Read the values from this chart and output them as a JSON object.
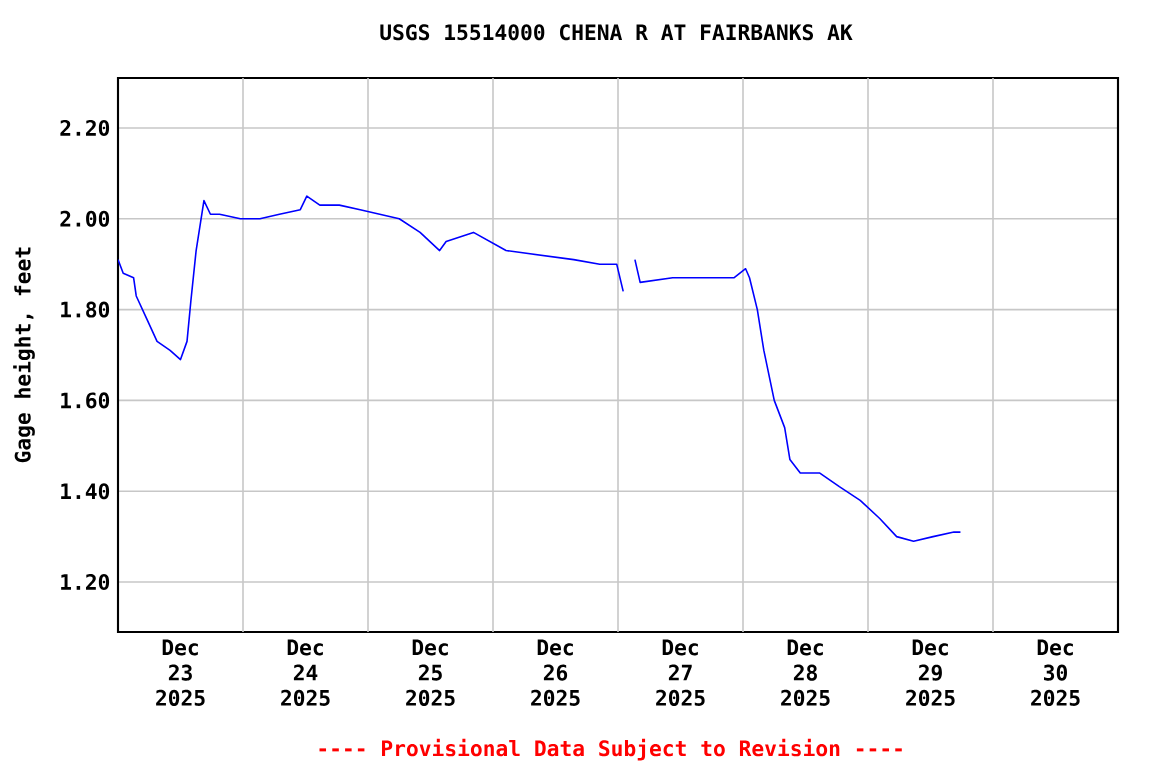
{
  "chart_data": {
    "type": "line",
    "title": "USGS 15514000 CHENA R AT FAIRBANKS AK",
    "ylabel": "Gage height, feet",
    "annotations": [
      "---- Provisional Data Subject to Revision ----"
    ],
    "xlim": [
      "2025-12-23T00:00",
      "2025-12-31T00:00"
    ],
    "xticks": [
      {
        "value": "2025-12-23T12:00",
        "label": "Dec 23 2025"
      },
      {
        "value": "2025-12-24T12:00",
        "label": "Dec 24 2025"
      },
      {
        "value": "2025-12-25T12:00",
        "label": "Dec 25 2025"
      },
      {
        "value": "2025-12-26T12:00",
        "label": "Dec 26 2025"
      },
      {
        "value": "2025-12-27T12:00",
        "label": "Dec 27 2025"
      },
      {
        "value": "2025-12-28T12:00",
        "label": "Dec 28 2025"
      },
      {
        "value": "2025-12-29T12:00",
        "label": "Dec 29 2025"
      },
      {
        "value": "2025-12-30T12:00",
        "label": "Dec 30 2025"
      },
      {
        "value": "2025-12-24T00:00",
        "label": null
      },
      {
        "value": "2025-12-25T00:00",
        "label": null
      },
      {
        "value": "2025-12-26T00:00",
        "label": null
      },
      {
        "value": "2025-12-27T00:00",
        "label": null
      },
      {
        "value": "2025-12-28T00:00",
        "label": null
      },
      {
        "value": "2025-12-29T00:00",
        "label": null
      },
      {
        "value": "2025-12-30T00:00",
        "label": null
      }
    ],
    "ylim": [
      1.09,
      2.31
    ],
    "yticks": [
      {
        "value": 1.2,
        "label": "1.20"
      },
      {
        "value": 1.4,
        "label": "1.40"
      },
      {
        "value": 1.6,
        "label": "1.60"
      },
      {
        "value": 1.8,
        "label": "1.80"
      },
      {
        "value": 2.0,
        "label": "2.00"
      },
      {
        "value": 2.2,
        "label": "2.20"
      }
    ],
    "grid": true,
    "marker": "none",
    "line_style": "solid",
    "series": [
      {
        "color": "#0000ff",
        "x": [
          "2025-12-23T00:00",
          "2025-12-23T01:00",
          "2025-12-23T03:00",
          "2025-12-23T03:30",
          "2025-12-23T05:30",
          "2025-12-23T07:30",
          "2025-12-23T10:00",
          "2025-12-23T12:00",
          "2025-12-23T13:15",
          "2025-12-23T14:00",
          "2025-12-23T15:00",
          "2025-12-23T16:30",
          "2025-12-23T17:45",
          "2025-12-23T19:30",
          "2025-12-23T23:30",
          "2025-12-24T03:15",
          "2025-12-24T07:00",
          "2025-12-24T11:00",
          "2025-12-24T12:15",
          "2025-12-24T14:45",
          "2025-12-24T18:30",
          "2025-12-24T22:30",
          "2025-12-25T02:15",
          "2025-12-25T06:00",
          "2025-12-25T10:00",
          "2025-12-25T13:45",
          "2025-12-25T15:00",
          "2025-12-25T20:15",
          "2025-12-26T02:30",
          "2025-12-26T09:00",
          "2025-12-26T15:30",
          "2025-12-26T20:30",
          "2025-12-26T23:45",
          "2025-12-27T01:00",
          "2025-12-27T02:00",
          "2025-12-27T03:15",
          "2025-12-27T04:15",
          "2025-12-27T10:30",
          "2025-12-27T17:00",
          "2025-12-27T22:15",
          "2025-12-28T00:30",
          "2025-12-28T01:15",
          "2025-12-28T02:45",
          "2025-12-28T04:00",
          "2025-12-28T06:00",
          "2025-12-28T08:00",
          "2025-12-28T09:00",
          "2025-12-28T11:00",
          "2025-12-28T14:45",
          "2025-12-28T18:30",
          "2025-12-28T22:30",
          "2025-12-29T02:15",
          "2025-12-29T05:30",
          "2025-12-29T08:45",
          "2025-12-29T12:30",
          "2025-12-29T16:30",
          "2025-12-29T17:45"
        ],
        "values": [
          1.91,
          1.88,
          1.87,
          1.83,
          1.78,
          1.73,
          1.71,
          1.69,
          1.73,
          1.82,
          1.93,
          2.04,
          2.01,
          2.01,
          2.0,
          2.0,
          2.01,
          2.02,
          2.05,
          2.03,
          2.03,
          2.02,
          2.01,
          2.0,
          1.97,
          1.93,
          1.95,
          1.97,
          1.93,
          1.92,
          1.91,
          1.9,
          1.9,
          1.84,
          null,
          1.91,
          1.86,
          1.87,
          1.87,
          1.87,
          1.89,
          1.87,
          1.8,
          1.71,
          1.6,
          1.54,
          1.47,
          1.44,
          1.44,
          1.41,
          1.38,
          1.34,
          1.3,
          1.29,
          1.3,
          1.31,
          1.31
        ]
      }
    ]
  }
}
